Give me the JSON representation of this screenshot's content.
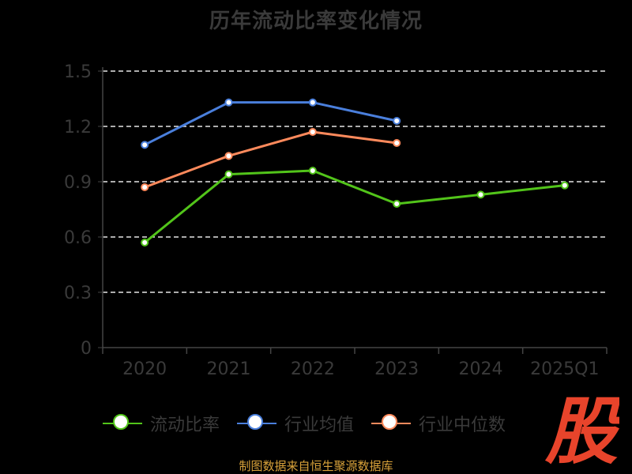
{
  "chart_data": {
    "type": "line",
    "title": "历年流动比率变化情况",
    "categories": [
      "2020",
      "2021",
      "2022",
      "2023",
      "2024",
      "2025Q1"
    ],
    "ylim": [
      0,
      1.5
    ],
    "yticks": [
      "0",
      "0.3",
      "0.6",
      "0.9",
      "1.2",
      "1.5"
    ],
    "grid": true,
    "legend_position": "bottom",
    "series": [
      {
        "name": "流动比率",
        "color": "#52c41a",
        "values": [
          0.57,
          0.94,
          0.96,
          0.78,
          0.83,
          0.88
        ]
      },
      {
        "name": "行业均值",
        "color": "#4a7fdc",
        "values": [
          1.1,
          1.33,
          1.33,
          1.23,
          null,
          null
        ]
      },
      {
        "name": "行业中位数",
        "color": "#ff8a5c",
        "values": [
          0.87,
          1.04,
          1.17,
          1.11,
          null,
          null
        ]
      }
    ]
  },
  "source_note": "制图数据来自恒生聚源数据库",
  "watermark": {
    "icon": "gu-logo-icon",
    "text": "股",
    "color": "#e8442b"
  }
}
